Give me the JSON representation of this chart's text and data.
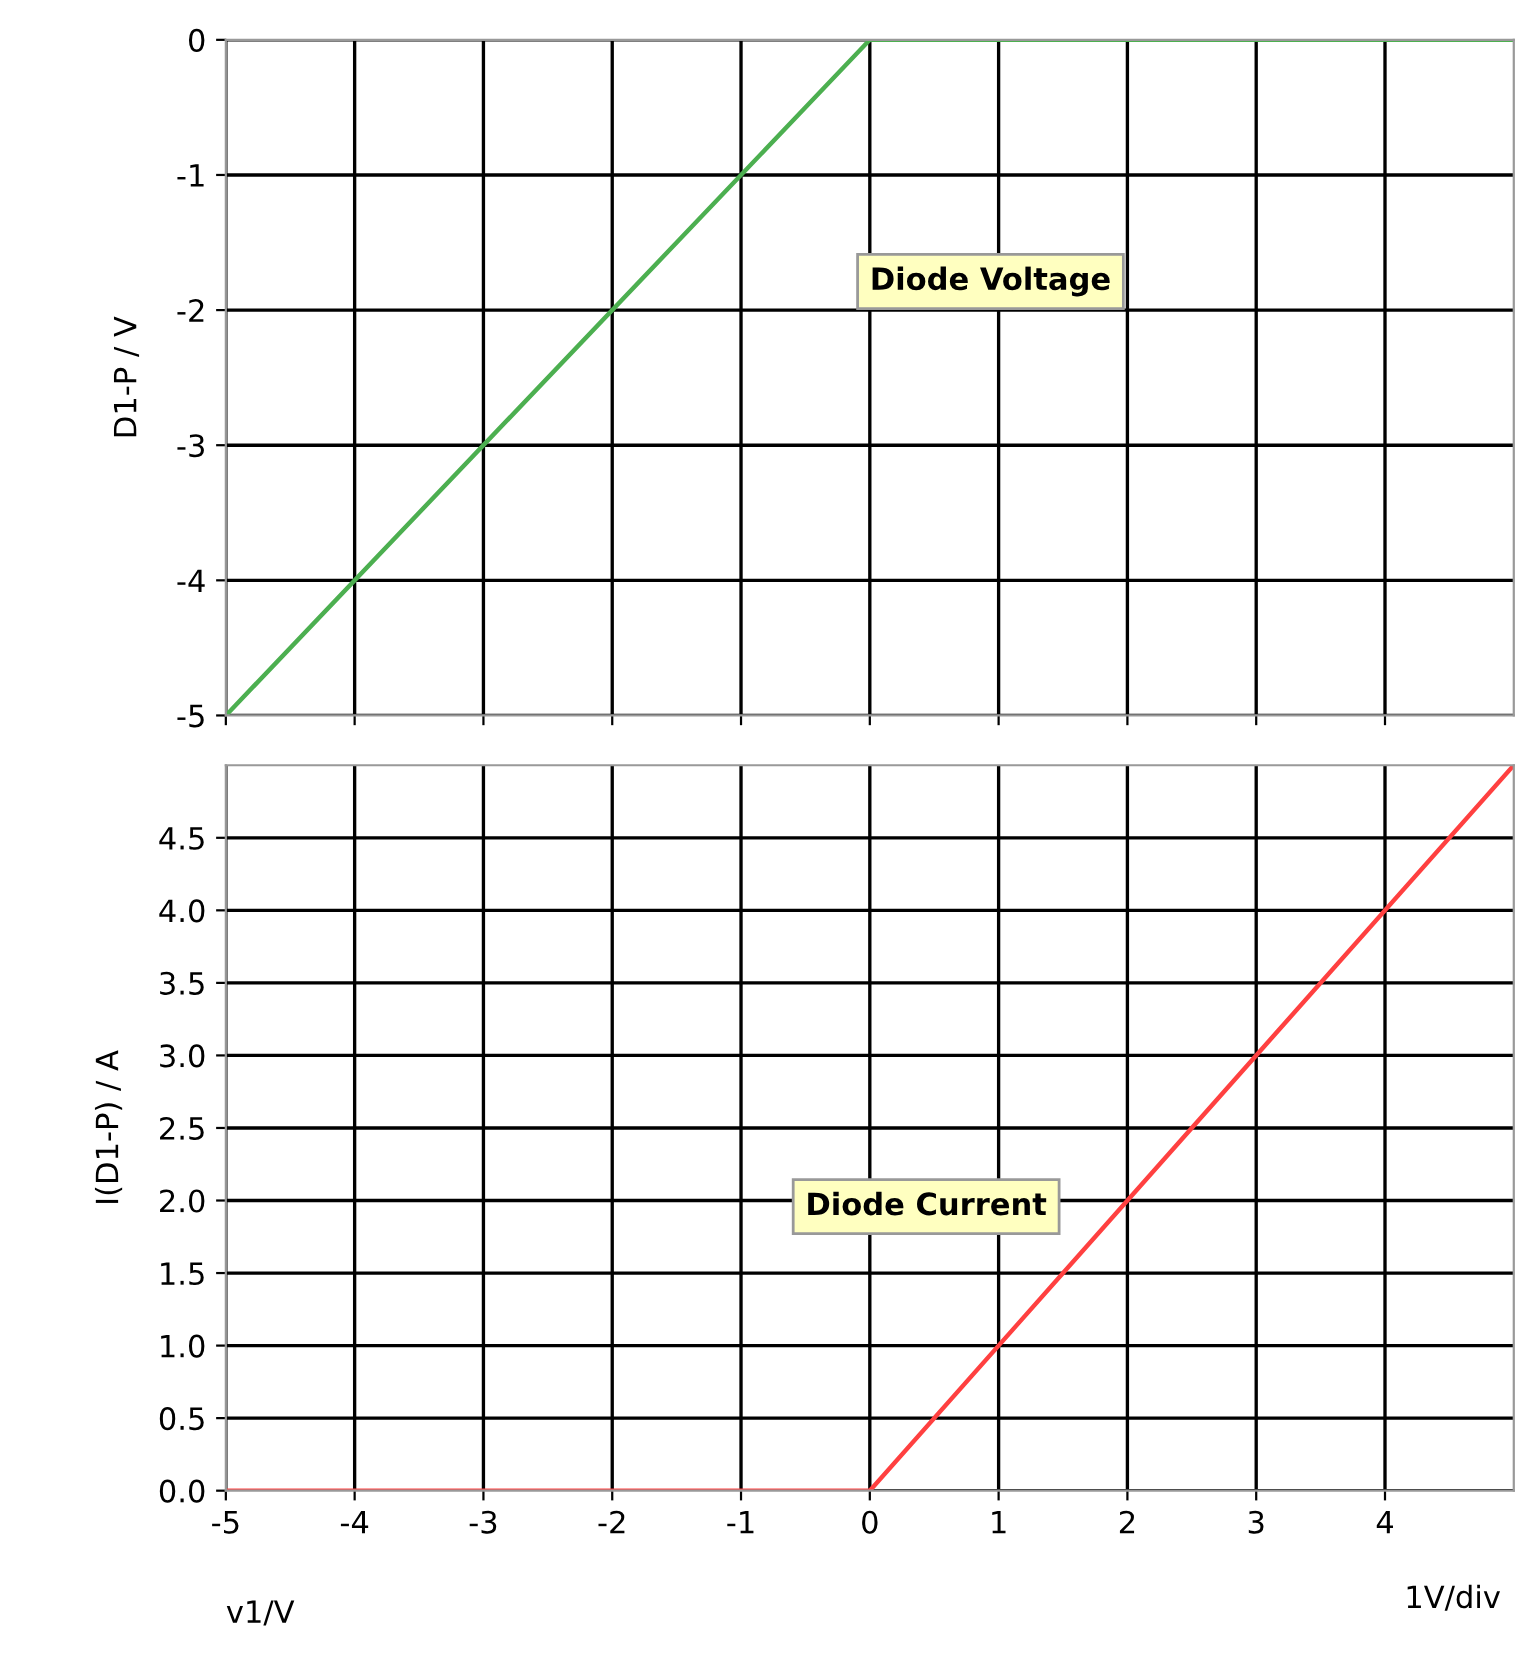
{
  "chart_data": [
    {
      "type": "line",
      "ylabel": "D1-P / V",
      "x": [
        -5,
        0,
        5
      ],
      "xlim": [
        -5,
        5
      ],
      "xticks": [
        -5,
        -4,
        -3,
        -2,
        -1,
        0,
        1,
        2,
        3,
        4
      ],
      "ylim": [
        -5,
        0
      ],
      "yticks": [
        -5,
        -4,
        -3,
        -2,
        -1,
        0
      ],
      "tick_labels": "y",
      "grid": true,
      "series": [
        {
          "color": "#4caf50",
          "values": [
            -5,
            0,
            0
          ]
        }
      ],
      "annotations": [
        "Diode Voltage"
      ]
    },
    {
      "type": "line",
      "ylabel": "I(D1-P) / A",
      "xlabel": "v1/V",
      "x": [
        -5,
        0,
        5
      ],
      "xlim": [
        -5,
        5
      ],
      "xticks": [
        -5,
        -4,
        -3,
        -2,
        -1,
        0,
        1,
        2,
        3,
        4
      ],
      "ylim": [
        0,
        5
      ],
      "yticks": [
        {
          "value": 0,
          "label": "0.0"
        },
        {
          "value": 0.5,
          "label": "0.5"
        },
        {
          "value": 1,
          "label": "1.0"
        },
        {
          "value": 1.5,
          "label": "1.5"
        },
        {
          "value": 2,
          "label": "2.0"
        },
        {
          "value": 2.5,
          "label": "2.5"
        },
        {
          "value": 3,
          "label": "3.0"
        },
        {
          "value": 3.5,
          "label": "3.5"
        },
        {
          "value": 4,
          "label": "4.0"
        },
        {
          "value": 4.5,
          "label": "4.5"
        }
      ],
      "grid": true,
      "series": [
        {
          "color": "#ff4040",
          "values": [
            0,
            0,
            5
          ]
        }
      ],
      "annotations": [
        "Diode Current",
        "1V/div"
      ]
    }
  ]
}
